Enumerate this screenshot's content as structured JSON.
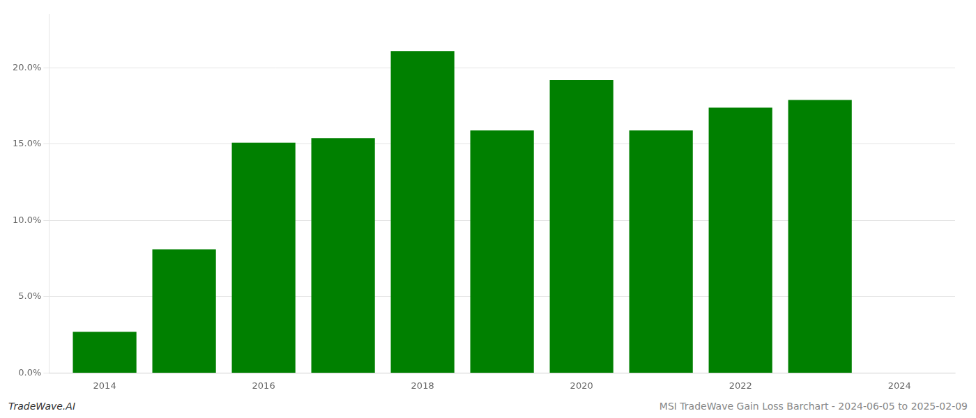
{
  "chart_data": {
    "type": "bar",
    "x": [
      2014,
      2015,
      2016,
      2017,
      2018,
      2019,
      2020,
      2021,
      2022,
      2023
    ],
    "values": [
      0.027,
      0.081,
      0.151,
      0.154,
      0.211,
      0.159,
      0.192,
      0.159,
      0.174,
      0.179
    ],
    "color": "#008000",
    "xlim": [
      2013.3,
      2024.7
    ],
    "xticks": [
      2014,
      2016,
      2018,
      2020,
      2022,
      2024
    ],
    "ylim": [
      0,
      0.235
    ],
    "yticks": [
      {
        "value": 0.0,
        "label": "0.0%"
      },
      {
        "value": 0.05,
        "label": "5.0%"
      },
      {
        "value": 0.1,
        "label": "10.0%"
      },
      {
        "value": 0.15,
        "label": "15.0%"
      },
      {
        "value": 0.2,
        "label": "20.0%"
      }
    ],
    "grid": "y",
    "annotations": [
      "TradeWave.AI",
      "MSI TradeWave Gain Loss Barchart - 2024-06-05 to 2025-02-09"
    ]
  }
}
